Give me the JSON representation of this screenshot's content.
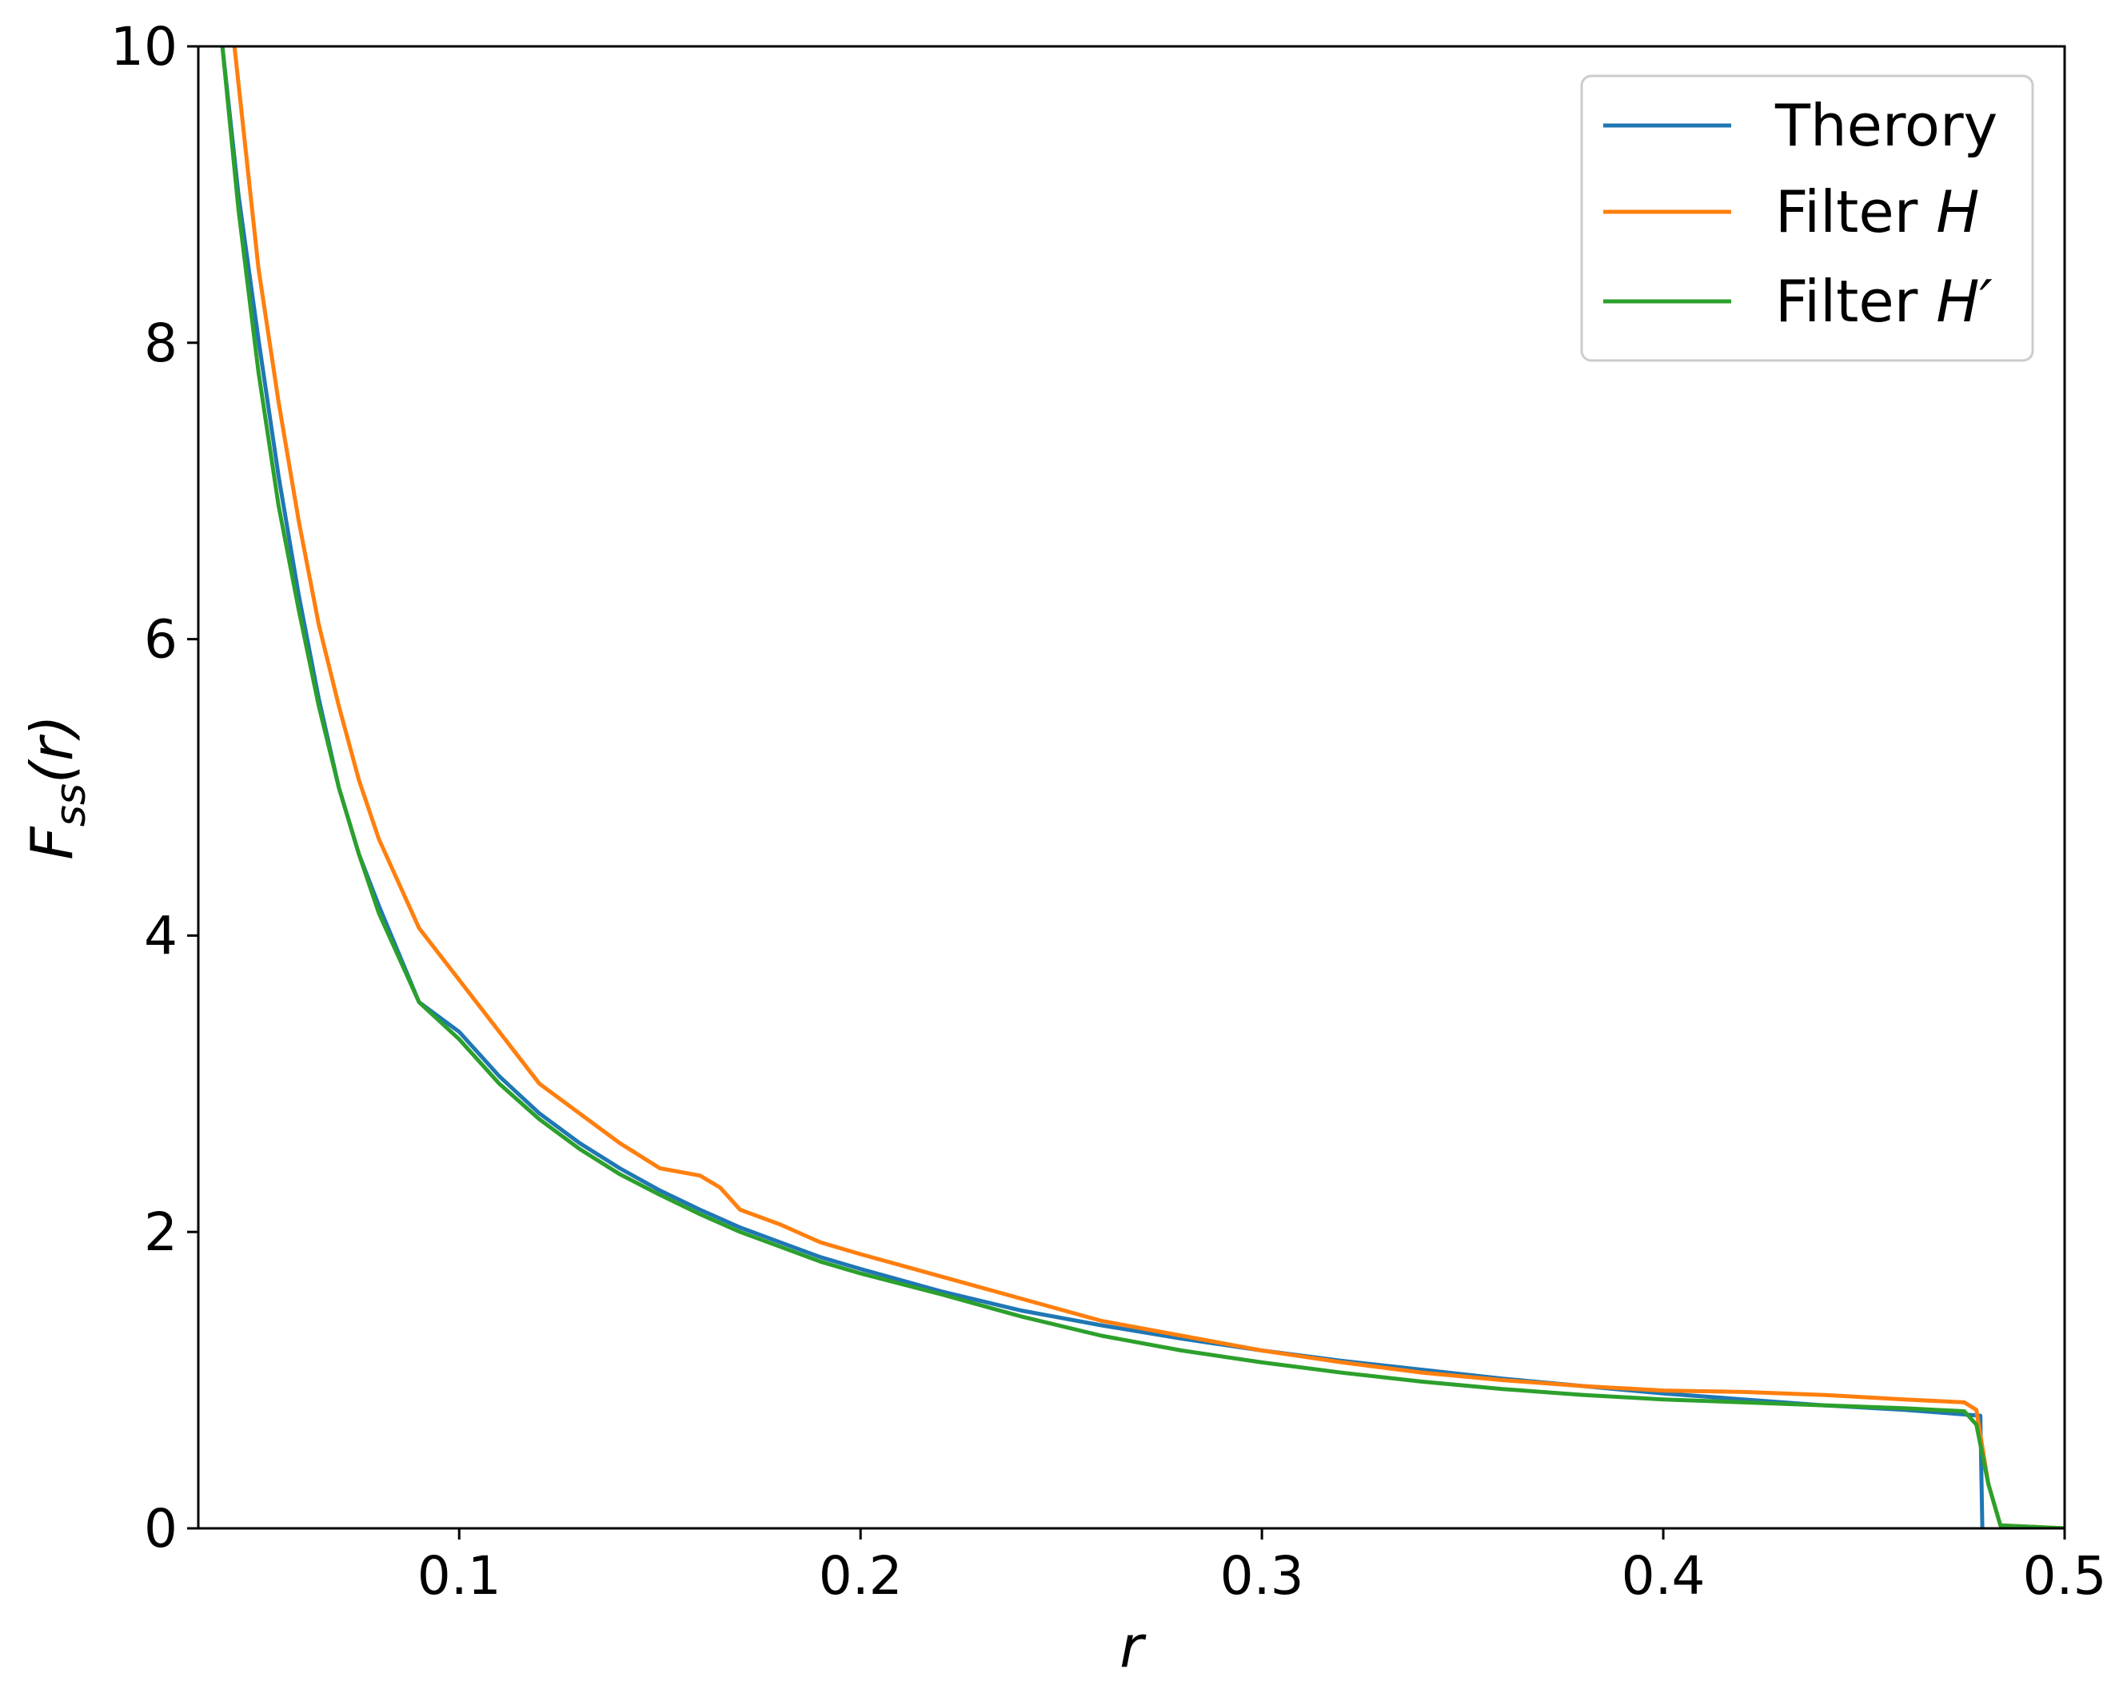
{
  "chart_data": {
    "type": "line",
    "title": "",
    "xlabel": "r",
    "ylabel": "F_ss(r)",
    "ylabel_parts": {
      "main": "F",
      "sub": "ss",
      "rest": "(r)"
    },
    "xlim": [
      0.035,
      0.5
    ],
    "ylim": [
      0,
      10
    ],
    "xticks": [
      0.1,
      0.2,
      0.3,
      0.4,
      0.5
    ],
    "xtick_labels": [
      "0.1",
      "0.2",
      "0.3",
      "0.4",
      "0.5"
    ],
    "yticks": [
      0,
      2,
      4,
      6,
      8,
      10
    ],
    "ytick_labels": [
      "0",
      "2",
      "4",
      "6",
      "8",
      "10"
    ],
    "grid": false,
    "legend_position": "top-right",
    "series": [
      {
        "name": "Therory",
        "color": "#1f77b4",
        "x": [
          0.041,
          0.045,
          0.05,
          0.055,
          0.06,
          0.065,
          0.07,
          0.075,
          0.08,
          0.09,
          0.1,
          0.11,
          0.12,
          0.13,
          0.14,
          0.15,
          0.16,
          0.17,
          0.18,
          0.19,
          0.2,
          0.22,
          0.24,
          0.26,
          0.28,
          0.3,
          0.32,
          0.34,
          0.36,
          0.38,
          0.4,
          0.42,
          0.44,
          0.46,
          0.479,
          0.4795,
          0.48
        ],
        "y": [
          10.0,
          9.0,
          8.02,
          7.1,
          6.3,
          5.6,
          5.0,
          4.55,
          4.2,
          3.55,
          3.35,
          3.05,
          2.8,
          2.6,
          2.43,
          2.28,
          2.15,
          2.03,
          1.93,
          1.83,
          1.75,
          1.6,
          1.47,
          1.37,
          1.28,
          1.2,
          1.13,
          1.07,
          1.01,
          0.96,
          0.91,
          0.87,
          0.83,
          0.8,
          0.76,
          0.0,
          0.0
        ]
      },
      {
        "name": "Filter H",
        "color": "#ff7f0e",
        "x": [
          0.044,
          0.05,
          0.055,
          0.06,
          0.065,
          0.07,
          0.075,
          0.08,
          0.09,
          0.1,
          0.11,
          0.12,
          0.13,
          0.14,
          0.15,
          0.16,
          0.165,
          0.17,
          0.18,
          0.19,
          0.2,
          0.22,
          0.24,
          0.26,
          0.28,
          0.3,
          0.32,
          0.34,
          0.36,
          0.38,
          0.4,
          0.42,
          0.44,
          0.46,
          0.475,
          0.478,
          0.481,
          0.484,
          0.5
        ],
        "y": [
          10.0,
          8.5,
          7.6,
          6.8,
          6.1,
          5.55,
          5.05,
          4.65,
          4.05,
          3.7,
          3.35,
          3.0,
          2.8,
          2.6,
          2.43,
          2.38,
          2.3,
          2.15,
          2.05,
          1.93,
          1.85,
          1.7,
          1.55,
          1.4,
          1.3,
          1.2,
          1.12,
          1.05,
          1.0,
          0.96,
          0.93,
          0.92,
          0.9,
          0.87,
          0.85,
          0.8,
          0.3,
          0.02,
          0.0
        ]
      },
      {
        "name": "Filter H'",
        "color": "#2ca02c",
        "x": [
          0.041,
          0.045,
          0.05,
          0.055,
          0.06,
          0.065,
          0.07,
          0.075,
          0.08,
          0.09,
          0.1,
          0.11,
          0.12,
          0.13,
          0.14,
          0.15,
          0.16,
          0.17,
          0.18,
          0.19,
          0.2,
          0.22,
          0.24,
          0.26,
          0.28,
          0.3,
          0.32,
          0.34,
          0.36,
          0.38,
          0.4,
          0.42,
          0.44,
          0.46,
          0.475,
          0.478,
          0.481,
          0.484,
          0.5
        ],
        "y": [
          10.0,
          8.9,
          7.8,
          6.9,
          6.2,
          5.55,
          5.0,
          4.55,
          4.15,
          3.55,
          3.3,
          3.0,
          2.76,
          2.56,
          2.39,
          2.25,
          2.12,
          2.0,
          1.9,
          1.8,
          1.72,
          1.58,
          1.43,
          1.3,
          1.2,
          1.12,
          1.05,
          0.99,
          0.94,
          0.9,
          0.87,
          0.85,
          0.83,
          0.81,
          0.79,
          0.7,
          0.3,
          0.02,
          0.0
        ]
      }
    ]
  },
  "legend": {
    "entries": [
      {
        "label": "Therory",
        "italic": "",
        "prime": ""
      },
      {
        "label": "Filter ",
        "italic": "H",
        "prime": ""
      },
      {
        "label": "Filter ",
        "italic": "H",
        "prime": "′"
      }
    ]
  }
}
